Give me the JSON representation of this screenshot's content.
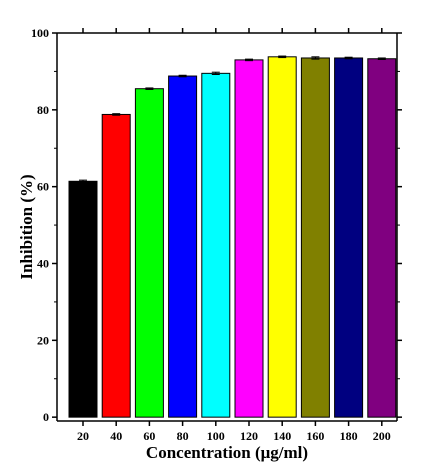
{
  "chart_data": {
    "type": "bar",
    "title": "",
    "xlabel": "Concentration (μg/ml)",
    "ylabel": "Inhibition (%)",
    "categories": [
      "20",
      "40",
      "60",
      "80",
      "100",
      "120",
      "140",
      "160",
      "180",
      "200"
    ],
    "values": [
      61.4,
      78.8,
      85.5,
      88.8,
      89.5,
      93.0,
      93.8,
      93.5,
      93.5,
      93.3
    ],
    "errors": [
      0.3,
      0.2,
      0.2,
      0.2,
      0.3,
      0.2,
      0.2,
      0.3,
      0.2,
      0.2
    ],
    "colors": [
      "#000000",
      "#ff0000",
      "#00ff00",
      "#0000ff",
      "#00ffff",
      "#ff00ff",
      "#ffff00",
      "#808000",
      "#000080",
      "#800080"
    ],
    "ylim": [
      -1,
      100
    ],
    "yticks": [
      0,
      20,
      40,
      60,
      80,
      100
    ],
    "grid": false,
    "legend": "none"
  }
}
